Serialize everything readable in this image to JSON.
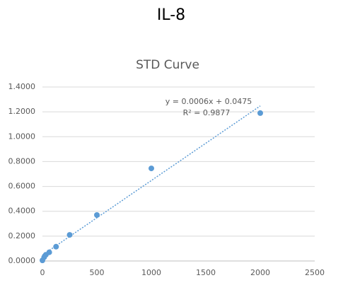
{
  "chart_data": {
    "type": "scatter",
    "title": "IL-8",
    "subtitle": "STD Curve",
    "x": [
      0,
      15.625,
      31.25,
      62.5,
      125,
      250,
      500,
      1000,
      2000
    ],
    "values": [
      0.005,
      0.03,
      0.05,
      0.07,
      0.115,
      0.21,
      0.37,
      0.745,
      1.19
    ],
    "color": "#5b9bd5",
    "xlim": [
      0,
      2500
    ],
    "xticks": [
      0,
      500,
      1000,
      1500,
      2000,
      2500
    ],
    "ylim": [
      0,
      1.4
    ],
    "yticks": [
      {
        "value": 0,
        "label": "0.0000"
      },
      {
        "value": 0.2,
        "label": "0.2000"
      },
      {
        "value": 0.4,
        "label": "0.4000"
      },
      {
        "value": 0.6,
        "label": "0.6000"
      },
      {
        "value": 0.8,
        "label": "0.8000"
      },
      {
        "value": 1.0,
        "label": "1.0000"
      },
      {
        "value": 1.2,
        "label": "1.2000"
      },
      {
        "value": 1.4,
        "label": "1.4000"
      }
    ],
    "grid": true,
    "trendline": {
      "slope": 0.0006,
      "intercept": 0.0475,
      "equation": "y = 0.0006x + 0.0475",
      "r2": "R² = 0.9877"
    }
  }
}
